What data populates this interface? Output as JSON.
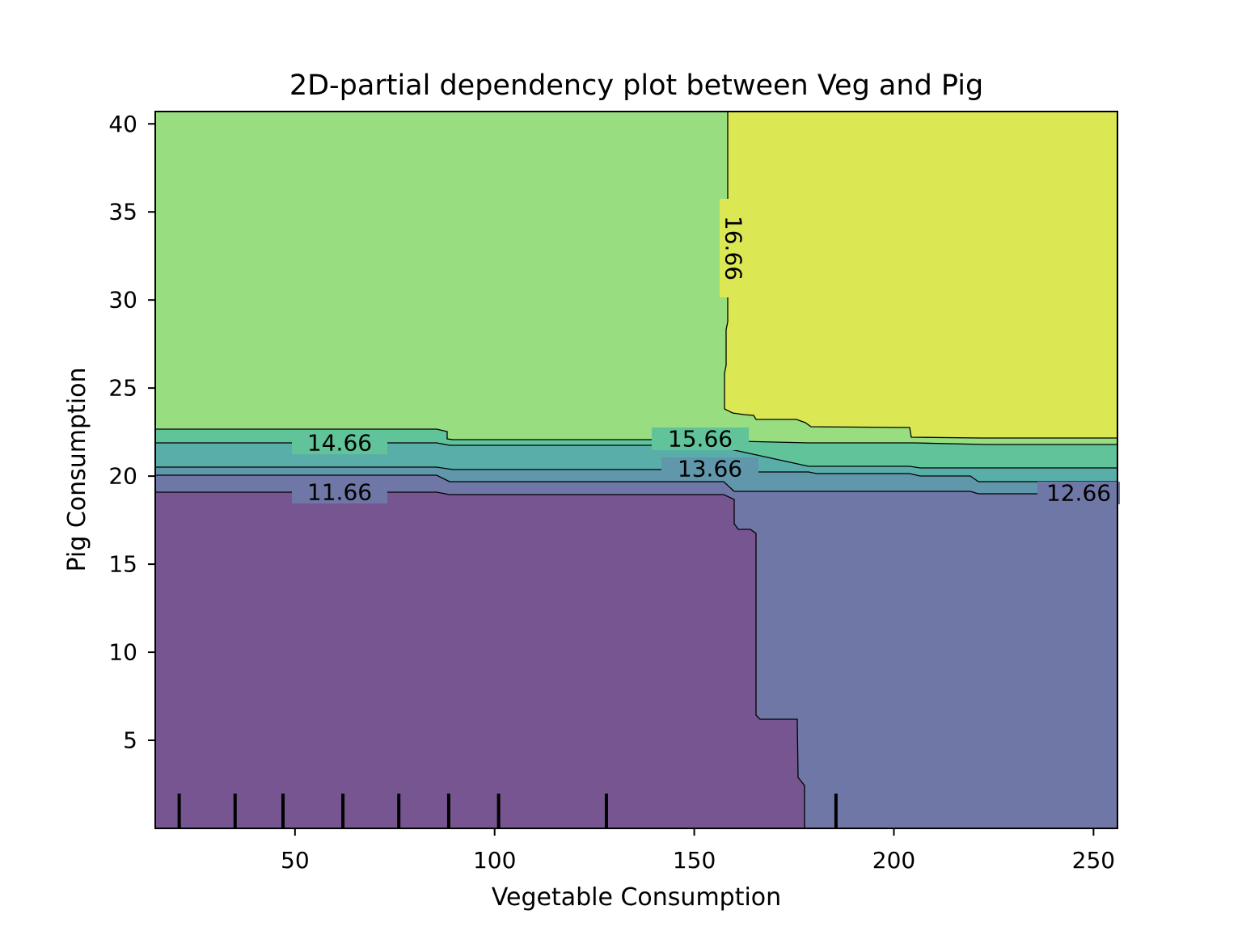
{
  "chart_data": {
    "type": "contour",
    "title": "2D-partial dependency plot between Veg and Pig",
    "xlabel": "Vegetable Consumption",
    "ylabel": "Pig Consumption",
    "xlim": [
      15,
      256
    ],
    "ylim": [
      0,
      40.7
    ],
    "x_ticks": [
      50,
      100,
      150,
      200,
      250
    ],
    "y_ticks": [
      5,
      10,
      15,
      20,
      25,
      30,
      35,
      40
    ],
    "contour_levels": [
      {
        "value": "11.66",
        "label": "11.66"
      },
      {
        "value": "12.66",
        "label": "12.66"
      },
      {
        "value": "13.66",
        "label": "13.66"
      },
      {
        "value": "14.66",
        "label": "14.66"
      },
      {
        "value": "15.66",
        "label": "15.66"
      },
      {
        "value": "16.66",
        "label": "16.66"
      }
    ],
    "region_colors": {
      "below_11.66": "#765590",
      "11.66_12.66": "#6f77a6",
      "12.66_13.66": "#6197aa",
      "13.66_14.66": "#5aaea9",
      "14.66_15.66": "#60c39a",
      "15.66_16.66": "#98de80",
      "above_16.66": "#dbe854"
    },
    "rug_x": [
      21,
      35,
      47,
      62,
      76,
      88.5,
      101,
      128,
      185.5
    ],
    "grid": false
  }
}
